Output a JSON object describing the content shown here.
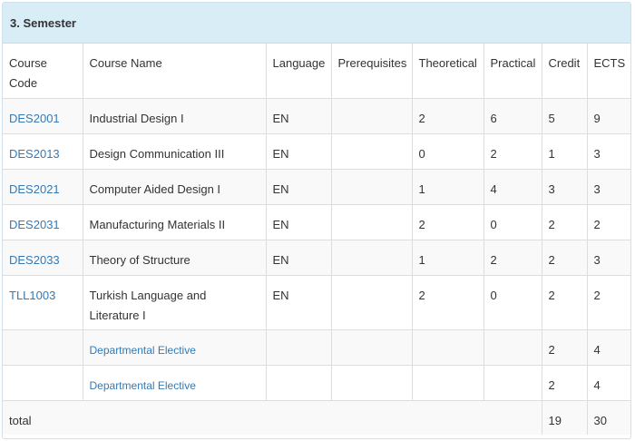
{
  "panel": {
    "title": "3. Semester"
  },
  "columns": {
    "code": "Course Code",
    "name": "Course Name",
    "language": "Language",
    "prerequisites": "Prerequisites",
    "theoretical": "Theoretical",
    "practical": "Practical",
    "credit": "Credit",
    "ects": "ECTS"
  },
  "courses": [
    {
      "code": "DES2001",
      "name": "Industrial Design I",
      "language": "EN",
      "prerequisites": "",
      "theoretical": "2",
      "practical": "6",
      "credit": "5",
      "ects": "9"
    },
    {
      "code": "DES2013",
      "name": "Design Communication III",
      "language": "EN",
      "prerequisites": "",
      "theoretical": "0",
      "practical": "2",
      "credit": "1",
      "ects": "3"
    },
    {
      "code": "DES2021",
      "name": "Computer Aided Design I",
      "language": "EN",
      "prerequisites": "",
      "theoretical": "1",
      "practical": "4",
      "credit": "3",
      "ects": "3"
    },
    {
      "code": "DES2031",
      "name": "Manufacturing Materials II",
      "language": "EN",
      "prerequisites": "",
      "theoretical": "2",
      "practical": "0",
      "credit": "2",
      "ects": "2"
    },
    {
      "code": "DES2033",
      "name": "Theory of Structure",
      "language": "EN",
      "prerequisites": "",
      "theoretical": "1",
      "practical": "2",
      "credit": "2",
      "ects": "3"
    },
    {
      "code": "TLL1003",
      "name": "Turkish Language and Literature I",
      "language": "EN",
      "prerequisites": "",
      "theoretical": "2",
      "practical": "0",
      "credit": "2",
      "ects": "2"
    }
  ],
  "electives": [
    {
      "name": "Departmental Elective",
      "credit": "2",
      "ects": "4"
    },
    {
      "name": "Departmental Elective",
      "credit": "2",
      "ects": "4"
    }
  ],
  "total": {
    "label": "total",
    "credit": "19",
    "ects": "30"
  },
  "colors": {
    "heading_bg": "#d9edf7",
    "link": "#337ab7",
    "border": "#dddddd"
  }
}
